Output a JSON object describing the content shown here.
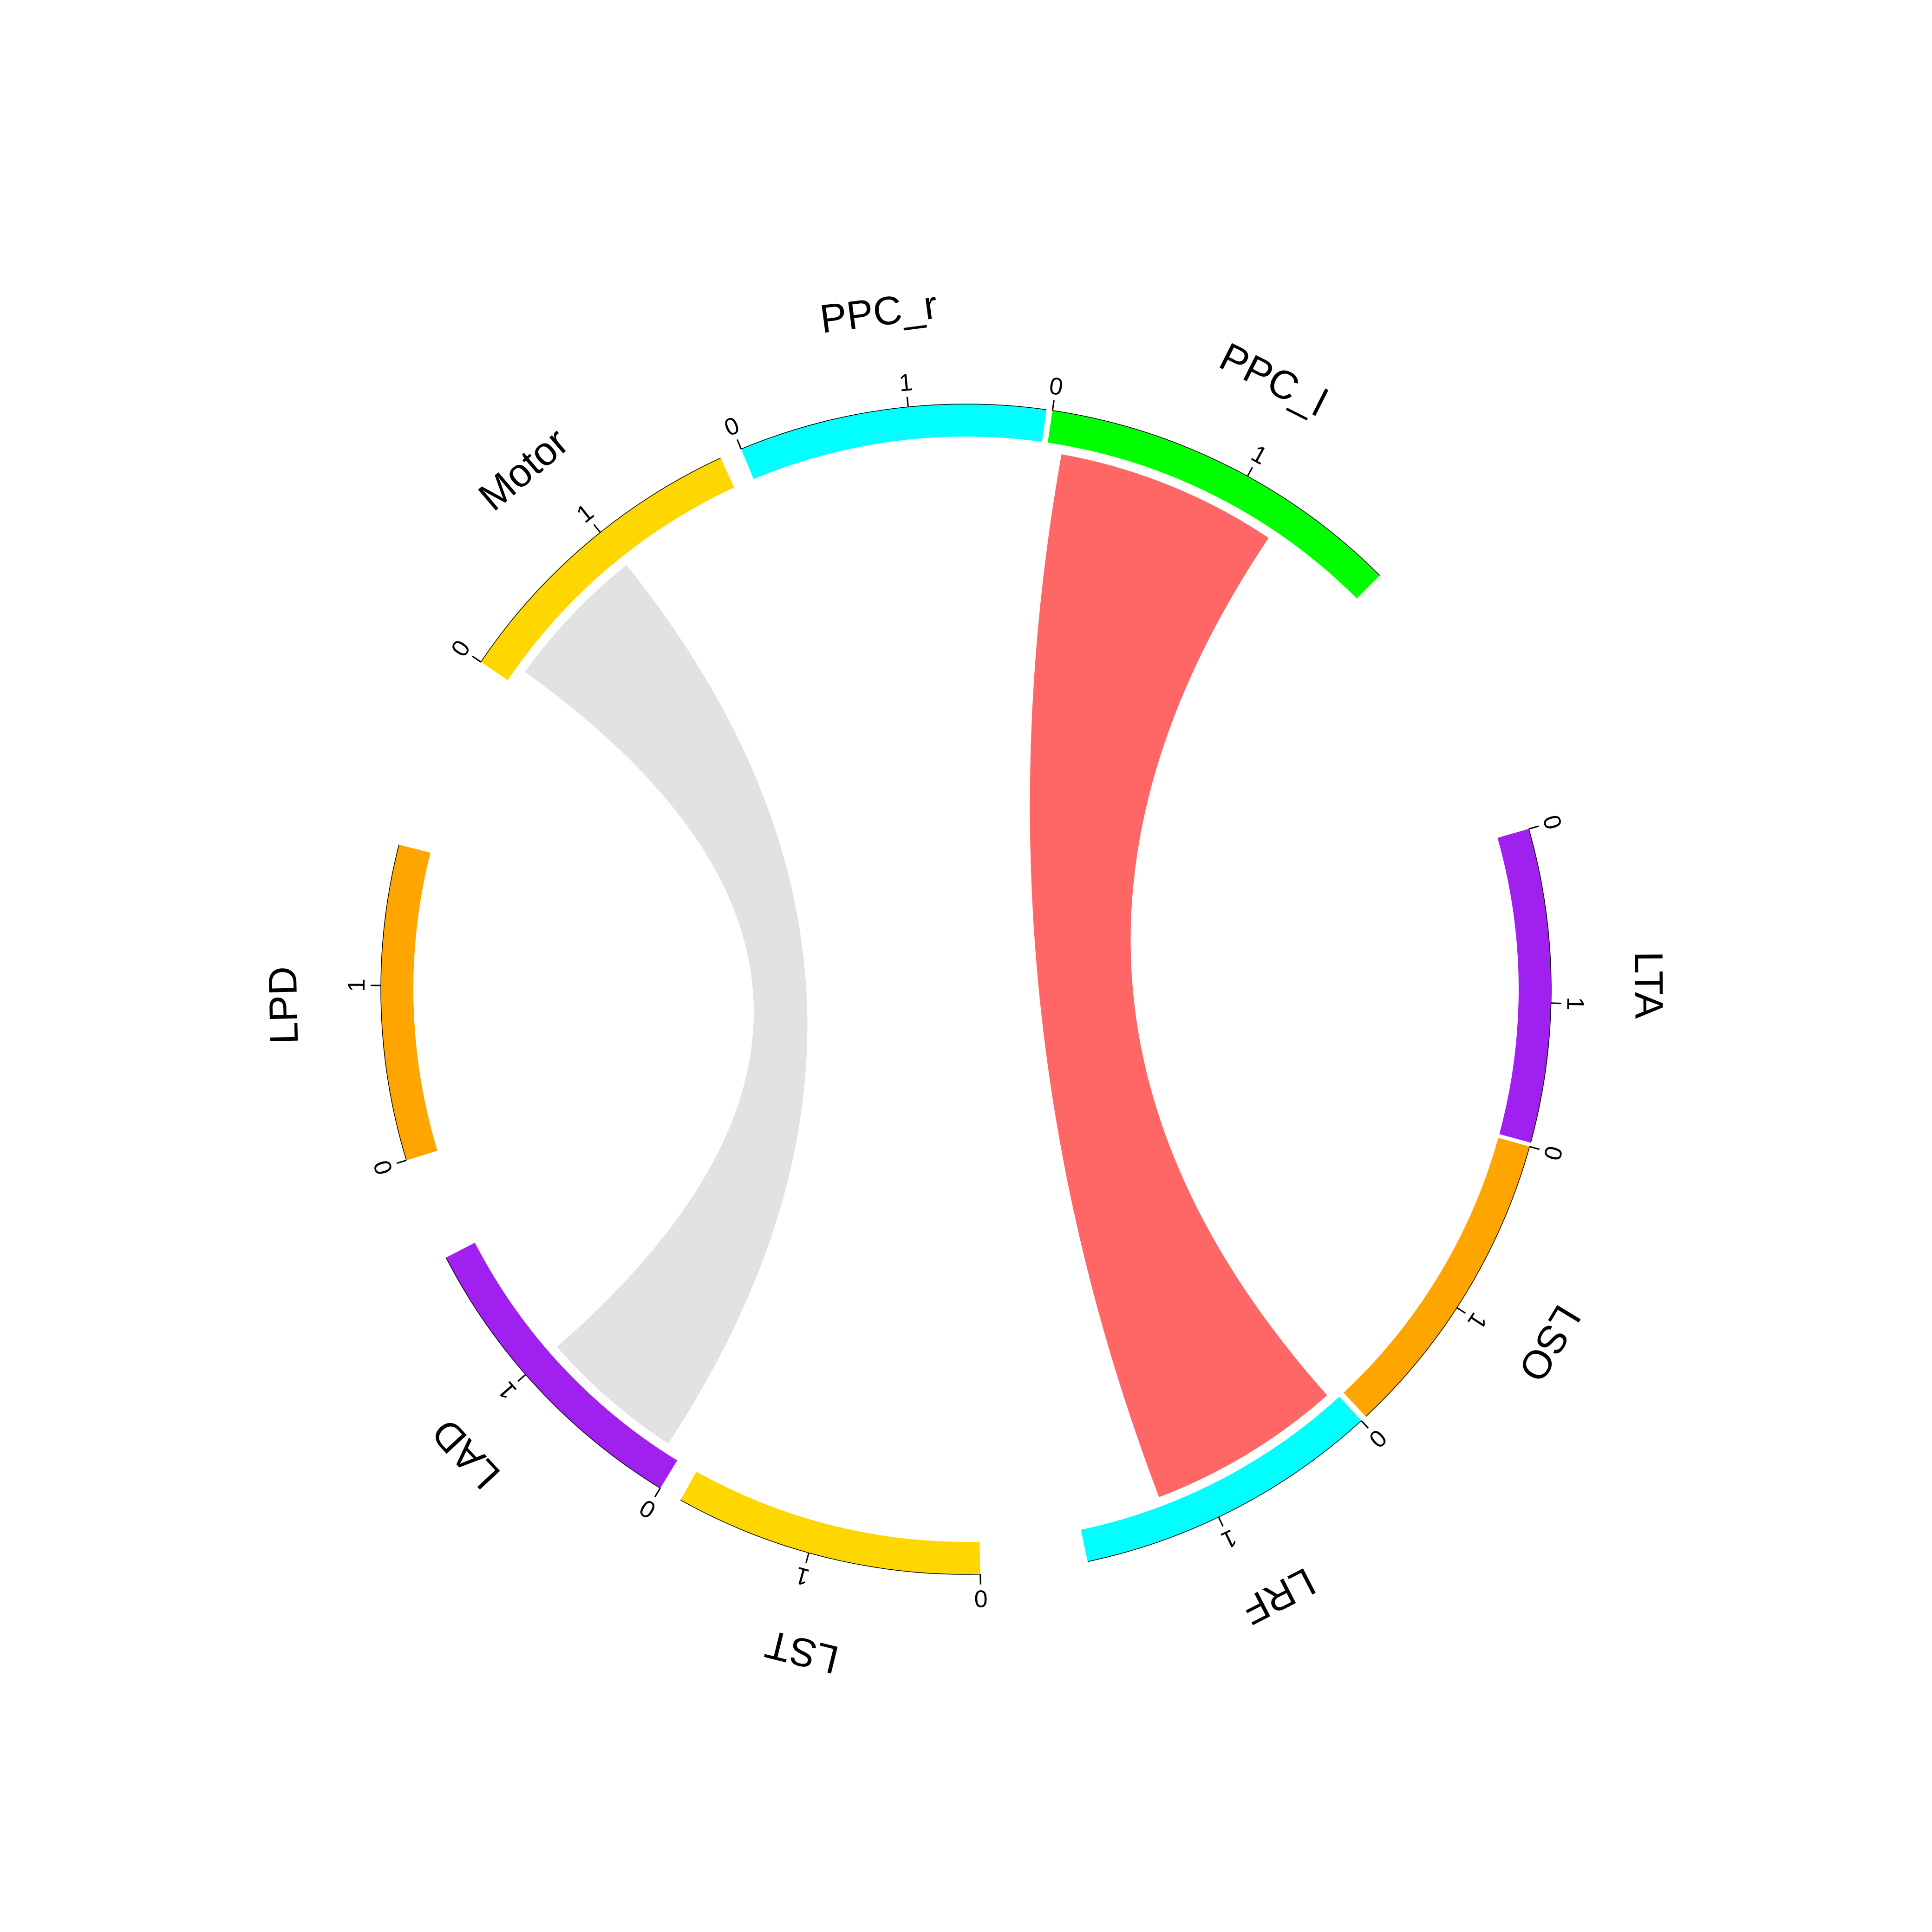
{
  "chart_data": {
    "type": "chord",
    "title": "",
    "sectors": [
      {
        "name": "PPC_r",
        "color": "#00FFFF",
        "tick_labels": [
          "0",
          "1"
        ],
        "range": [
          0,
          1.8
        ]
      },
      {
        "name": "PPC_l",
        "color": "#00FF00",
        "tick_labels": [
          "0",
          "1"
        ],
        "range": [
          0,
          1.8
        ]
      },
      {
        "name": "LTA",
        "color": "#A020F0",
        "tick_labels": [
          "0",
          "1"
        ],
        "range": [
          0,
          1.8
        ]
      },
      {
        "name": "LSO",
        "color": "#FFA500",
        "tick_labels": [
          "0",
          "1"
        ],
        "range": [
          0,
          1.8
        ]
      },
      {
        "name": "LRF",
        "color": "#00FFFF",
        "tick_labels": [
          "0",
          "1"
        ],
        "range": [
          0,
          1.8
        ]
      },
      {
        "name": "LST",
        "color": "#FFD700",
        "tick_labels": [
          "0",
          "1"
        ],
        "range": [
          0,
          1.8
        ]
      },
      {
        "name": "LAD",
        "color": "#A020F0",
        "tick_labels": [
          "0",
          "1"
        ],
        "range": [
          0,
          1.8
        ]
      },
      {
        "name": "LPD",
        "color": "#FFA500",
        "tick_labels": [
          "0",
          "1"
        ],
        "range": [
          0,
          1.8
        ]
      },
      {
        "name": "Motor",
        "color": "#FFD700",
        "tick_labels": [
          "0",
          "1"
        ],
        "range": [
          0,
          1.8
        ]
      }
    ],
    "links": [
      {
        "from": "PPC_l",
        "to": "LRF",
        "color": "#FF6666",
        "from_range": [
          0.08,
          1.25
        ],
        "to_range": [
          0.05,
          1.28
        ]
      },
      {
        "from": "Motor",
        "to": "LAD",
        "color": "#E2E2E2",
        "from_range": [
          0.1,
          1.0
        ],
        "to_range": [
          0.1,
          1.0
        ]
      }
    ]
  }
}
